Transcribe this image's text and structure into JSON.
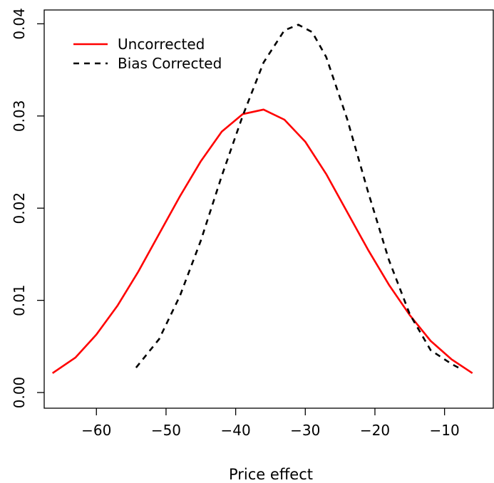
{
  "chart_data": {
    "type": "line",
    "title": "",
    "xlabel": "Price effect",
    "ylabel": "",
    "xlim": [
      -67.5,
      -3
    ],
    "ylim": [
      -0.0017,
      0.0415
    ],
    "x_ticks": [
      -60,
      -50,
      -40,
      -30,
      -20,
      -10
    ],
    "x_tick_labels": [
      "−60",
      "−50",
      "−40",
      "−30",
      "−20",
      "−10"
    ],
    "y_ticks": [
      0.0,
      0.01,
      0.02,
      0.03,
      0.04
    ],
    "y_tick_labels": [
      "0.00",
      "0.01",
      "0.02",
      "0.03",
      "0.04"
    ],
    "grid": false,
    "legend_position": "top-left",
    "series": [
      {
        "name": "Uncorrected",
        "color": "#ff0000",
        "line_style": "solid",
        "x": [
          -66.3,
          -63,
          -60,
          -57,
          -54,
          -51,
          -48,
          -45,
          -42,
          -39,
          -36,
          -33,
          -30,
          -27,
          -24,
          -21,
          -18,
          -15,
          -12,
          -9,
          -6
        ],
        "y": [
          0.0021,
          0.0038,
          0.0063,
          0.0094,
          0.0131,
          0.0172,
          0.0213,
          0.0251,
          0.0283,
          0.0302,
          0.0307,
          0.0296,
          0.0272,
          0.0237,
          0.0196,
          0.0155,
          0.0117,
          0.0084,
          0.0056,
          0.0036,
          0.0021
        ]
      },
      {
        "name": "Bias Corrected",
        "color": "#000000",
        "line_style": "dashed",
        "x": [
          -54.3,
          -51,
          -48,
          -45,
          -42,
          -39,
          -36,
          -33,
          -31,
          -29,
          -27,
          -24,
          -21,
          -18,
          -15,
          -12,
          -9,
          -8
        ],
        "y": [
          0.0027,
          0.0058,
          0.0105,
          0.0165,
          0.0235,
          0.03,
          0.0358,
          0.0393,
          0.0399,
          0.0391,
          0.0364,
          0.0297,
          0.0218,
          0.0144,
          0.0085,
          0.0046,
          0.0031,
          0.0027
        ]
      }
    ]
  }
}
